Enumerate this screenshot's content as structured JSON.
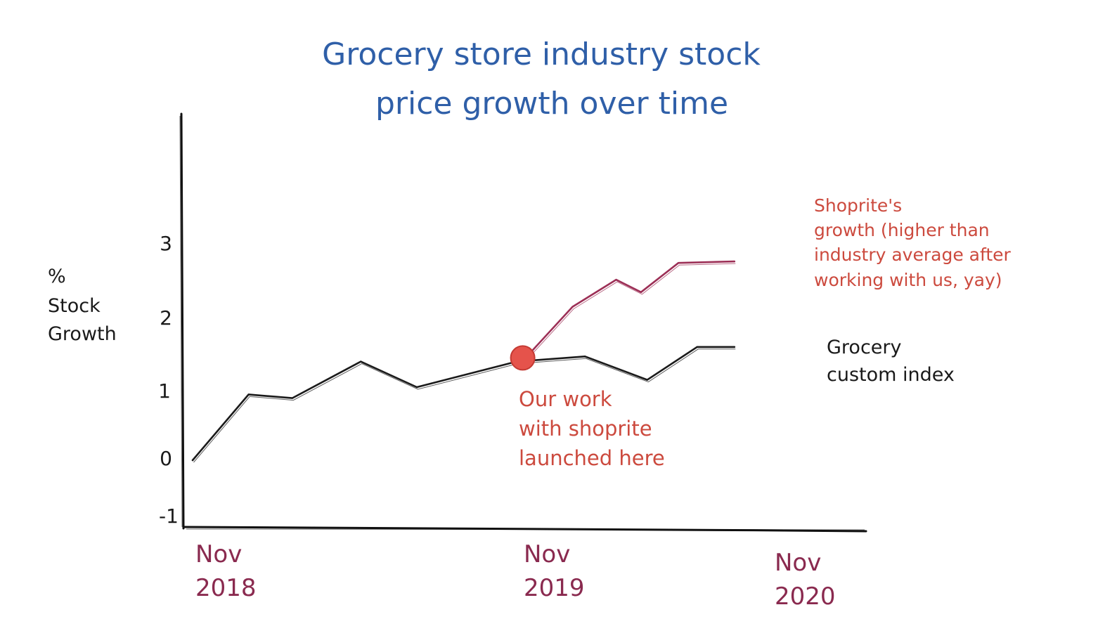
{
  "chart_data": {
    "type": "line",
    "title": [
      "Grocery store industry stock",
      "price growth over time"
    ],
    "ylabel": [
      "%",
      "Stock",
      "Growth"
    ],
    "y_ticks": [
      "3",
      "2",
      "1",
      "0",
      "-1"
    ],
    "x_ticks": [
      {
        "line1": "Nov",
        "line2": "2018"
      },
      {
        "line1": "Nov",
        "line2": "2019"
      },
      {
        "line1": "Nov",
        "line2": "2020"
      }
    ],
    "ylim": [
      -1,
      3
    ],
    "series": [
      {
        "name": "Grocery custom index",
        "color": "#1a1a1a",
        "points": [
          [
            0.0,
            0.0
          ],
          [
            0.09,
            0.9
          ],
          [
            0.16,
            0.85
          ],
          [
            0.27,
            1.35
          ],
          [
            0.36,
            1.0
          ],
          [
            0.52,
            1.35
          ],
          [
            0.63,
            1.42
          ],
          [
            0.73,
            1.1
          ],
          [
            0.81,
            1.55
          ],
          [
            0.87,
            1.55
          ]
        ]
      },
      {
        "name": "Shoprite",
        "color": "#9c2f56",
        "points": [
          [
            0.54,
            1.45
          ],
          [
            0.61,
            2.1
          ],
          [
            0.68,
            2.47
          ],
          [
            0.72,
            2.3
          ],
          [
            0.78,
            2.7
          ],
          [
            0.87,
            2.72
          ]
        ]
      }
    ],
    "annotations": {
      "launch_marker": {
        "x": 0.53,
        "y": 1.4,
        "color": "#e5534b"
      },
      "launch_text": [
        "Our work",
        "with shoprite",
        "launched here"
      ],
      "shoprite_text": [
        "Shoprite's",
        "growth (higher than",
        "industry average after",
        "working with us, yay)"
      ],
      "index_text": [
        "Grocery",
        "custom index"
      ]
    },
    "grid": false,
    "legend": "none"
  }
}
